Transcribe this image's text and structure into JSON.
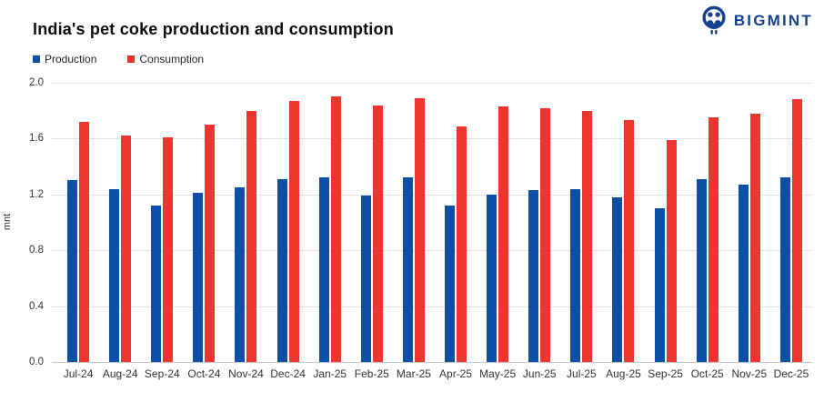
{
  "brand": {
    "name": "BIGMINT",
    "color": "#16418c",
    "icon": "bigmint-logo-icon"
  },
  "chart_data": {
    "type": "bar",
    "title": "India's pet coke production and consumption",
    "xlabel": "",
    "ylabel": "mnt",
    "ylim": [
      0,
      2.0
    ],
    "yticks": [
      "2.0",
      "1.6",
      "1.2",
      "0.8",
      "0.4",
      "0.0"
    ],
    "grid": true,
    "legend_position": "top-left",
    "categories": [
      "Jul-24",
      "Aug-24",
      "Sep-24",
      "Oct-24",
      "Nov-24",
      "Dec-24",
      "Jan-25",
      "Feb-25",
      "Mar-25",
      "Apr-25",
      "May-25",
      "Jun-25",
      "Jul-25",
      "Aug-25",
      "Sep-25",
      "Oct-25",
      "Nov-25",
      "Dec-25"
    ],
    "series": [
      {
        "name": "Production",
        "color": "#0d4ea6",
        "values": [
          1.3,
          1.24,
          1.12,
          1.21,
          1.25,
          1.31,
          1.32,
          1.19,
          1.32,
          1.12,
          1.2,
          1.23,
          1.24,
          1.18,
          1.1,
          1.31,
          1.27,
          1.32
        ]
      },
      {
        "name": "Consumption",
        "color": "#ee3630",
        "values": [
          1.72,
          1.62,
          1.61,
          1.7,
          1.8,
          1.87,
          1.9,
          1.84,
          1.89,
          1.69,
          1.83,
          1.82,
          1.8,
          1.73,
          1.59,
          1.75,
          1.78,
          1.88
        ]
      }
    ]
  }
}
